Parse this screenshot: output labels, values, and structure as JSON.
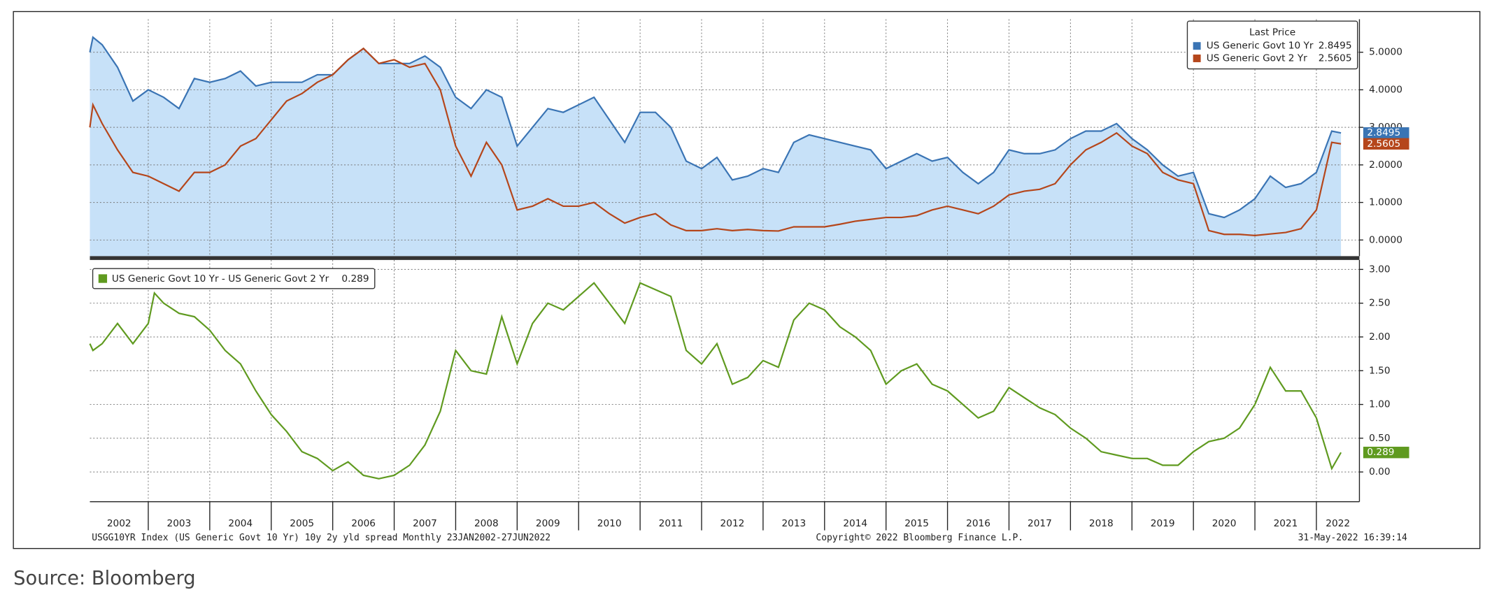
{
  "chart_data": [
    {
      "type": "line",
      "legend_title": "Last Price",
      "x": [
        2002.05,
        2002.1,
        2002.25,
        2002.5,
        2002.75,
        2003.0,
        2003.25,
        2003.5,
        2003.75,
        2004.0,
        2004.25,
        2004.5,
        2004.75,
        2005.0,
        2005.25,
        2005.5,
        2005.75,
        2006.0,
        2006.25,
        2006.5,
        2006.75,
        2007.0,
        2007.25,
        2007.5,
        2007.75,
        2008.0,
        2008.25,
        2008.5,
        2008.75,
        2009.0,
        2009.25,
        2009.5,
        2009.75,
        2010.0,
        2010.25,
        2010.5,
        2010.75,
        2011.0,
        2011.25,
        2011.5,
        2011.75,
        2012.0,
        2012.25,
        2012.5,
        2012.75,
        2013.0,
        2013.25,
        2013.5,
        2013.75,
        2014.0,
        2014.25,
        2014.5,
        2014.75,
        2015.0,
        2015.25,
        2015.5,
        2015.75,
        2016.0,
        2016.25,
        2016.5,
        2016.75,
        2017.0,
        2017.25,
        2017.5,
        2017.75,
        2018.0,
        2018.25,
        2018.5,
        2018.75,
        2019.0,
        2019.25,
        2019.5,
        2019.75,
        2020.0,
        2020.25,
        2020.5,
        2020.75,
        2021.0,
        2021.25,
        2021.5,
        2021.75,
        2022.0,
        2022.25,
        2022.4
      ],
      "series": [
        {
          "name": "US Generic Govt 10 Yr",
          "color": "#3a74b4",
          "area": "#c7e1f8",
          "values": [
            5.0,
            5.4,
            5.2,
            4.6,
            3.7,
            4.0,
            3.8,
            3.5,
            4.3,
            4.2,
            4.3,
            4.5,
            4.1,
            4.2,
            4.2,
            4.2,
            4.4,
            4.4,
            4.8,
            5.1,
            4.7,
            4.7,
            4.7,
            4.9,
            4.6,
            3.8,
            3.5,
            4.0,
            3.8,
            2.5,
            3.0,
            3.5,
            3.4,
            3.6,
            3.8,
            3.2,
            2.6,
            3.4,
            3.4,
            3.0,
            2.1,
            1.9,
            2.2,
            1.6,
            1.7,
            1.9,
            1.8,
            2.6,
            2.8,
            2.7,
            2.6,
            2.5,
            2.4,
            1.9,
            2.1,
            2.3,
            2.1,
            2.2,
            1.8,
            1.5,
            1.8,
            2.4,
            2.3,
            2.3,
            2.4,
            2.7,
            2.9,
            2.9,
            3.1,
            2.7,
            2.4,
            2.0,
            1.7,
            1.8,
            0.7,
            0.6,
            0.8,
            1.1,
            1.7,
            1.4,
            1.5,
            1.8,
            2.9,
            2.8495
          ]
        },
        {
          "name": "US Generic Govt 2 Yr",
          "color": "#b5461b",
          "values": [
            3.0,
            3.6,
            3.1,
            2.4,
            1.8,
            1.7,
            1.5,
            1.3,
            1.8,
            1.8,
            2.0,
            2.5,
            2.7,
            3.2,
            3.7,
            3.9,
            4.2,
            4.4,
            4.8,
            5.1,
            4.7,
            4.8,
            4.6,
            4.7,
            4.0,
            2.5,
            1.7,
            2.6,
            2.0,
            0.8,
            0.9,
            1.1,
            0.9,
            0.9,
            1.0,
            0.7,
            0.45,
            0.6,
            0.7,
            0.4,
            0.25,
            0.25,
            0.3,
            0.25,
            0.28,
            0.25,
            0.24,
            0.35,
            0.35,
            0.35,
            0.42,
            0.5,
            0.55,
            0.6,
            0.6,
            0.65,
            0.8,
            0.9,
            0.8,
            0.7,
            0.9,
            1.2,
            1.3,
            1.35,
            1.5,
            2.0,
            2.4,
            2.6,
            2.85,
            2.5,
            2.3,
            1.8,
            1.6,
            1.5,
            0.25,
            0.15,
            0.15,
            0.12,
            0.16,
            0.2,
            0.3,
            0.8,
            2.6,
            2.5605
          ]
        }
      ],
      "xlim": [
        2002.05,
        2022.7
      ],
      "xticks": [
        2002,
        2003,
        2004,
        2005,
        2006,
        2007,
        2008,
        2009,
        2010,
        2011,
        2012,
        2013,
        2014,
        2015,
        2016,
        2017,
        2018,
        2019,
        2020,
        2021,
        2022
      ],
      "ylim": [
        -0.43,
        5.88
      ],
      "yticks": [
        {
          "value": 0,
          "label": "0.0000"
        },
        {
          "value": 1,
          "label": "1.0000"
        },
        {
          "value": 2,
          "label": "2.0000"
        },
        {
          "value": 3,
          "label": "3.0000"
        },
        {
          "value": 4,
          "label": "4.0000"
        },
        {
          "value": 5,
          "label": "5.0000"
        }
      ],
      "grid": true
    },
    {
      "type": "line",
      "x": [
        2002.05,
        2002.1,
        2002.25,
        2002.5,
        2002.75,
        2003.0,
        2003.1,
        2003.25,
        2003.5,
        2003.75,
        2004.0,
        2004.25,
        2004.5,
        2004.75,
        2005.0,
        2005.25,
        2005.5,
        2005.75,
        2006.0,
        2006.25,
        2006.5,
        2006.75,
        2007.0,
        2007.25,
        2007.5,
        2007.75,
        2008.0,
        2008.25,
        2008.5,
        2008.75,
        2009.0,
        2009.25,
        2009.5,
        2009.75,
        2010.0,
        2010.25,
        2010.5,
        2010.75,
        2011.0,
        2011.25,
        2011.5,
        2011.75,
        2012.0,
        2012.25,
        2012.5,
        2012.75,
        2013.0,
        2013.25,
        2013.5,
        2013.75,
        2014.0,
        2014.25,
        2014.5,
        2014.75,
        2015.0,
        2015.25,
        2015.5,
        2015.75,
        2016.0,
        2016.25,
        2016.5,
        2016.75,
        2017.0,
        2017.25,
        2017.5,
        2017.75,
        2018.0,
        2018.25,
        2018.5,
        2018.75,
        2019.0,
        2019.25,
        2019.5,
        2019.75,
        2020.0,
        2020.25,
        2020.5,
        2020.75,
        2021.0,
        2021.25,
        2021.5,
        2021.75,
        2022.0,
        2022.25,
        2022.4
      ],
      "series": [
        {
          "name": "US Generic Govt 10 Yr - US Generic Govt 2 Yr",
          "color": "#5f9a1f",
          "values": [
            1.9,
            1.8,
            1.9,
            2.2,
            1.9,
            2.2,
            2.65,
            2.5,
            2.35,
            2.3,
            2.1,
            1.8,
            1.6,
            1.2,
            0.85,
            0.6,
            0.3,
            0.2,
            0.02,
            0.15,
            -0.05,
            -0.1,
            -0.05,
            0.1,
            0.4,
            0.9,
            1.8,
            1.5,
            1.45,
            2.3,
            1.6,
            2.2,
            2.5,
            2.4,
            2.6,
            2.8,
            2.5,
            2.2,
            2.8,
            2.7,
            2.6,
            1.8,
            1.6,
            1.9,
            1.3,
            1.4,
            1.65,
            1.55,
            2.25,
            2.5,
            2.4,
            2.15,
            2.0,
            1.8,
            1.3,
            1.5,
            1.6,
            1.3,
            1.2,
            1.0,
            0.8,
            0.9,
            1.25,
            1.1,
            0.95,
            0.85,
            0.65,
            0.5,
            0.3,
            0.25,
            0.2,
            0.2,
            0.1,
            0.1,
            0.3,
            0.45,
            0.5,
            0.65,
            1.0,
            1.55,
            1.2,
            1.2,
            0.8,
            0.05,
            0.289
          ]
        }
      ],
      "xlim": [
        2002.05,
        2022.7
      ],
      "xticks": [
        2002,
        2003,
        2004,
        2005,
        2006,
        2007,
        2008,
        2009,
        2010,
        2011,
        2012,
        2013,
        2014,
        2015,
        2016,
        2017,
        2018,
        2019,
        2020,
        2021,
        2022
      ],
      "ylim": [
        -0.44,
        3.14
      ],
      "yticks": [
        {
          "value": 0,
          "label": "0.00"
        },
        {
          "value": 0.5,
          "label": "0.50"
        },
        {
          "value": 1,
          "label": "1.00"
        },
        {
          "value": 1.5,
          "label": "1.50"
        },
        {
          "value": 2,
          "label": "2.00"
        },
        {
          "value": 2.5,
          "label": "2.50"
        },
        {
          "value": 3,
          "label": "3.00"
        }
      ],
      "grid": true
    }
  ],
  "footer": {
    "left": "USGG10YR Index (US Generic Govt 10 Yr) 10y 2y yld spread  Monthly 23JAN2002-27JUN2022",
    "center": "Copyright© 2022 Bloomberg Finance L.P.",
    "right": "31-May-2022 16:39:14"
  },
  "source": "Source: Bloomberg"
}
